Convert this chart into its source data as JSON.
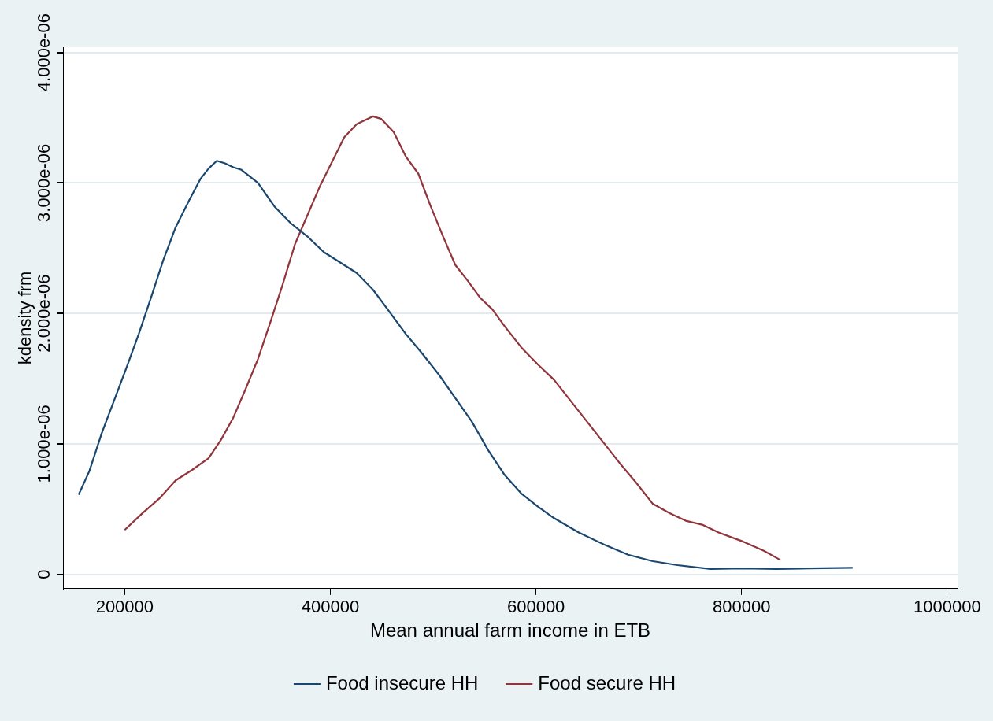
{
  "chart_data": {
    "type": "line",
    "xlabel": "Mean annual farm income in ETB",
    "ylabel": "kdensity frm",
    "xlim": [
      140000,
      1010000
    ],
    "xticks": [
      200000,
      400000,
      600000,
      800000,
      1000000
    ],
    "ylim": [
      -1.1e-07,
      4.04e-06
    ],
    "yticks": [
      0,
      {
        "value": 1e-06,
        "label": "1.000e-06"
      },
      {
        "value": 2e-06,
        "label": "2.000e-06"
      },
      {
        "value": 3e-06,
        "label": "3.000e-06"
      },
      {
        "value": 4e-06,
        "label": "4.000e-06"
      }
    ],
    "grid": "y",
    "legend": "bottom",
    "marker": "none",
    "line_style": "solid",
    "series": [
      {
        "name": "Food insecure HH",
        "color": "#1a476f",
        "x": [
          155200,
          165600,
          177600,
          189600,
          201600,
          213600,
          225600,
          237600,
          249600,
          261600,
          273600,
          281600,
          289600,
          297600,
          305600,
          313600,
          329600,
          345600,
          361600,
          377600,
          393600,
          409600,
          425600,
          441600,
          457600,
          473600,
          489600,
          505600,
          521600,
          537600,
          553600,
          569600,
          585600,
          601600,
          617600,
          641600,
          665600,
          689600,
          713600,
          737600,
          769600,
          801600,
          833600,
          865600,
          908000
        ],
        "values": [
          6.1e-07,
          7.9e-07,
          1.08e-06,
          1.33e-06,
          1.58e-06,
          1.84e-06,
          2.12e-06,
          2.41e-06,
          2.66e-06,
          2.85e-06,
          3.03e-06,
          3.11e-06,
          3.17e-06,
          3.15e-06,
          3.12e-06,
          3.1e-06,
          3e-06,
          2.82e-06,
          2.69e-06,
          2.59e-06,
          2.47e-06,
          2.39e-06,
          2.31e-06,
          2.18e-06,
          2.01e-06,
          1.84e-06,
          1.69e-06,
          1.53e-06,
          1.35e-06,
          1.17e-06,
          9.5e-07,
          7.6e-07,
          6.2e-07,
          5.2e-07,
          4.3e-07,
          3.2e-07,
          2.3e-07,
          1.5e-07,
          1e-07,
          7e-08,
          4e-08,
          4.5e-08,
          4e-08,
          4.5e-08,
          5e-08
        ]
      },
      {
        "name": "Food secure HH",
        "color": "#90353b",
        "x": [
          200000,
          217600,
          233600,
          249600,
          265600,
          281600,
          293600,
          305600,
          317600,
          329600,
          341600,
          353600,
          365600,
          377600,
          389600,
          401600,
          413600,
          425600,
          441600,
          449600,
          461600,
          473600,
          485600,
          497600,
          509600,
          521600,
          533600,
          545600,
          557600,
          569600,
          585600,
          601600,
          617600,
          633600,
          649600,
          665600,
          681600,
          697600,
          713600,
          729600,
          745600,
          761600,
          777600,
          801600,
          821600,
          837600
        ],
        "values": [
          3.4e-07,
          4.7e-07,
          5.8e-07,
          7.2e-07,
          8e-07,
          8.9e-07,
          1.03e-06,
          1.2e-06,
          1.42e-06,
          1.65e-06,
          1.93e-06,
          2.22e-06,
          2.53e-06,
          2.75e-06,
          2.97e-06,
          3.16e-06,
          3.35e-06,
          3.45e-06,
          3.51e-06,
          3.49e-06,
          3.39e-06,
          3.2e-06,
          3.07e-06,
          2.82e-06,
          2.59e-06,
          2.37e-06,
          2.25e-06,
          2.12e-06,
          2.03e-06,
          1.9e-06,
          1.74e-06,
          1.61e-06,
          1.49e-06,
          1.33e-06,
          1.17e-06,
          1.01e-06,
          8.5e-07,
          7e-07,
          5.4e-07,
          4.7e-07,
          4.1e-07,
          3.8e-07,
          3.2e-07,
          2.5e-07,
          1.8e-07,
          1.1e-07
        ]
      }
    ]
  }
}
